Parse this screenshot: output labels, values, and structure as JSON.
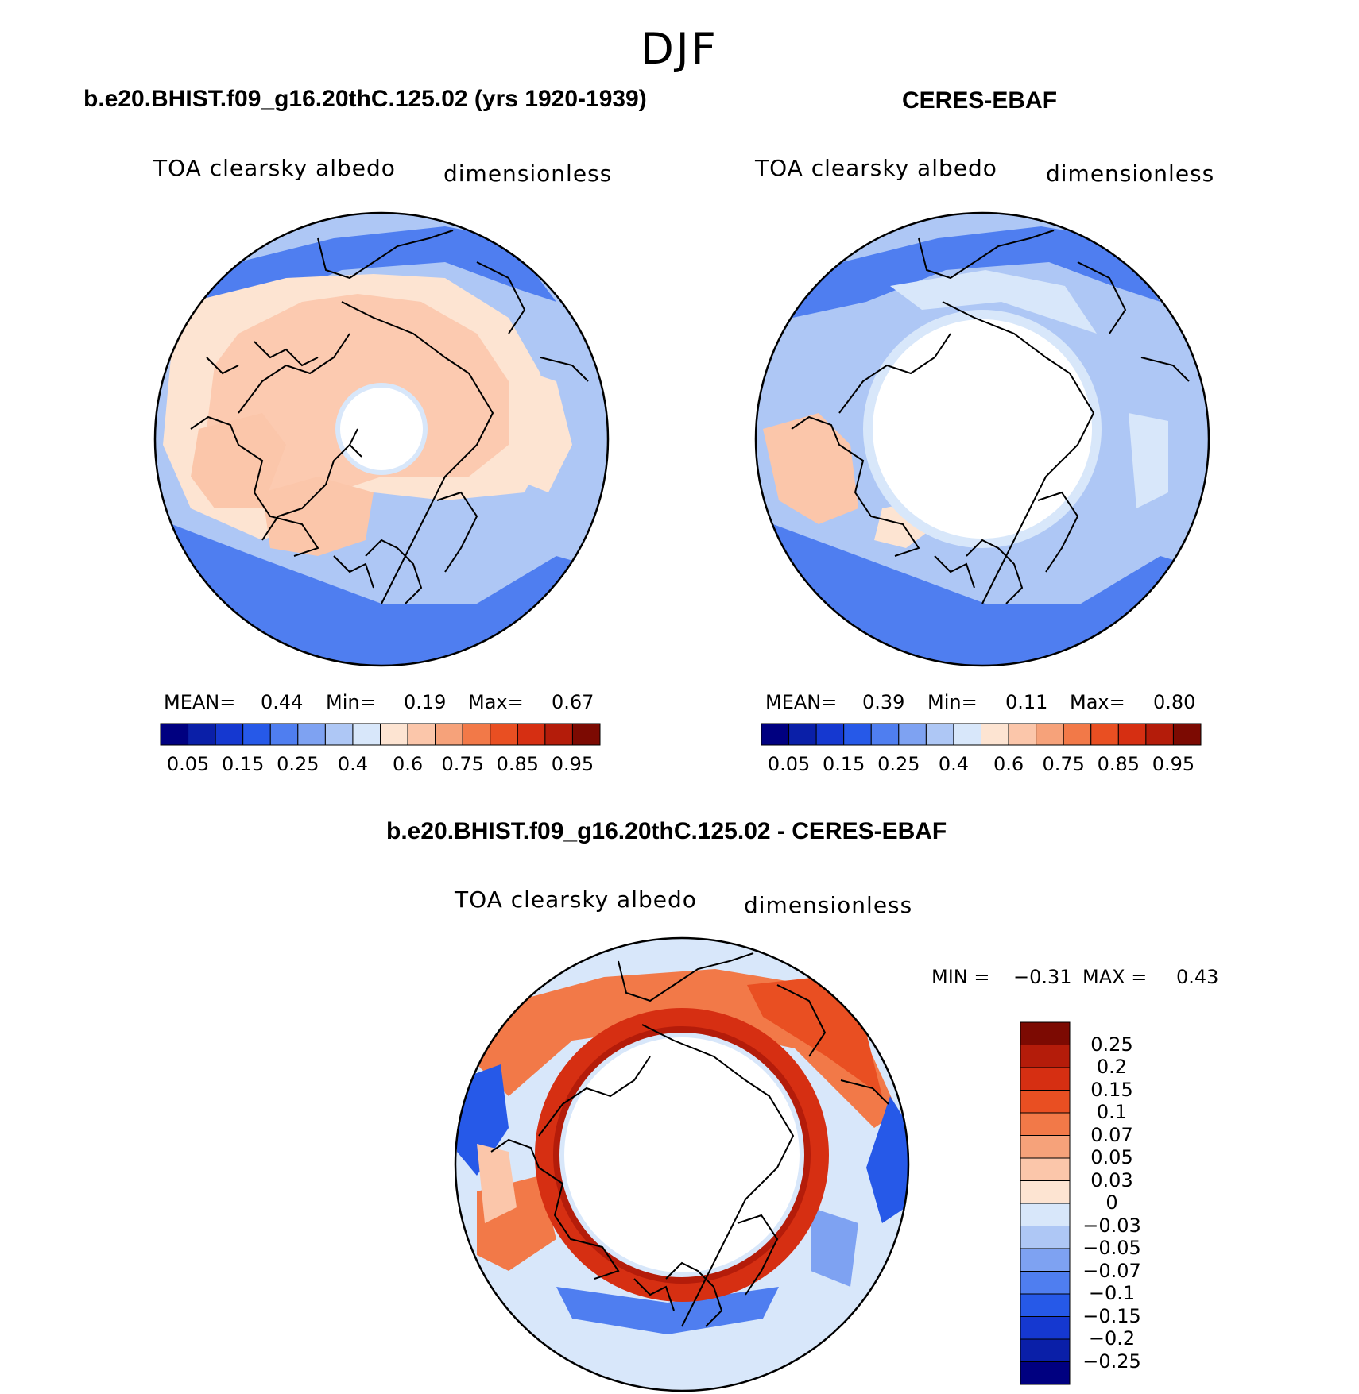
{
  "figure": {
    "title": "DJF"
  },
  "panels": [
    {
      "id": "model",
      "title": "b.e20.BHIST.f09_g16.20thC.125.02 (yrs 1920-1939)",
      "left_label": "TOA clearsky albedo",
      "right_label": "dimensionless",
      "stats": {
        "mean_label": "MEAN=",
        "mean": "0.44",
        "min_label": "Min=",
        "min": "0.19",
        "max_label": "Max=",
        "max": "0.67"
      },
      "colorbar_ticks": [
        "0.05",
        "0.15",
        "0.25",
        "0.4",
        "0.6",
        "0.75",
        "0.85",
        "0.95"
      ]
    },
    {
      "id": "obs",
      "title": "CERES-EBAF",
      "left_label": "TOA clearsky albedo",
      "right_label": "dimensionless",
      "stats": {
        "mean_label": "MEAN=",
        "mean": "0.39",
        "min_label": "Min=",
        "min": "0.11",
        "max_label": "Max=",
        "max": "0.80"
      },
      "colorbar_ticks": [
        "0.05",
        "0.15",
        "0.25",
        "0.4",
        "0.6",
        "0.75",
        "0.85",
        "0.95"
      ]
    },
    {
      "id": "diff",
      "title": "b.e20.BHIST.f09_g16.20thC.125.02 - CERES-EBAF",
      "left_label": "TOA clearsky albedo",
      "right_label": "dimensionless",
      "stats": {
        "min_label": "MIN =",
        "min": "−0.31",
        "max_label": "MAX =",
        "max": "0.43"
      },
      "colorbar_ticks": [
        "0.25",
        "0.2",
        "0.15",
        "0.1",
        "0.07",
        "0.05",
        "0.03",
        "0",
        "−0.03",
        "−0.05",
        "−0.07",
        "−0.1",
        "−0.15",
        "−0.2",
        "−0.25"
      ]
    }
  ],
  "colormap": [
    "#000080",
    "#0a1fa8",
    "#1538d0",
    "#2659e8",
    "#4f7ef0",
    "#7ea2f2",
    "#aec7f5",
    "#d8e7fa",
    "#fde4d2",
    "#fbc6aa",
    "#f6a27a",
    "#f27948",
    "#e94f22",
    "#d62f12",
    "#b41c0a",
    "#7c0a02"
  ],
  "colors": {
    "land_outline": "#000000",
    "no_data": "#ffffff"
  }
}
